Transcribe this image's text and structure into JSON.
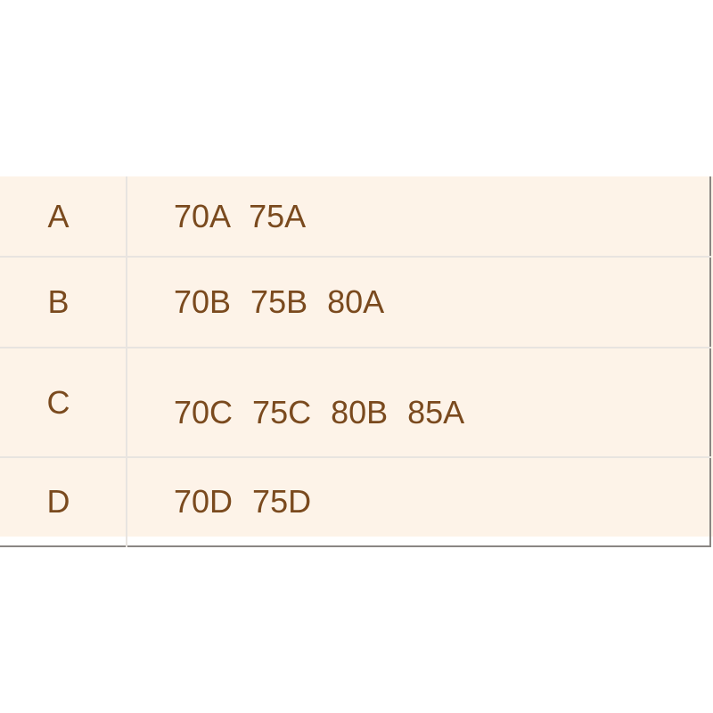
{
  "table": {
    "rows": [
      {
        "cup": "A",
        "sizes": "70A 75A"
      },
      {
        "cup": "B",
        "sizes": "70B 75B 80A"
      },
      {
        "cup": "C",
        "sizes": "70C 75C 80B 85A"
      },
      {
        "cup": "D",
        "sizes": "70D 75D"
      }
    ]
  },
  "colors": {
    "background": "#fdf3e8",
    "text": "#7a4a1e",
    "border": "#8a8683"
  }
}
